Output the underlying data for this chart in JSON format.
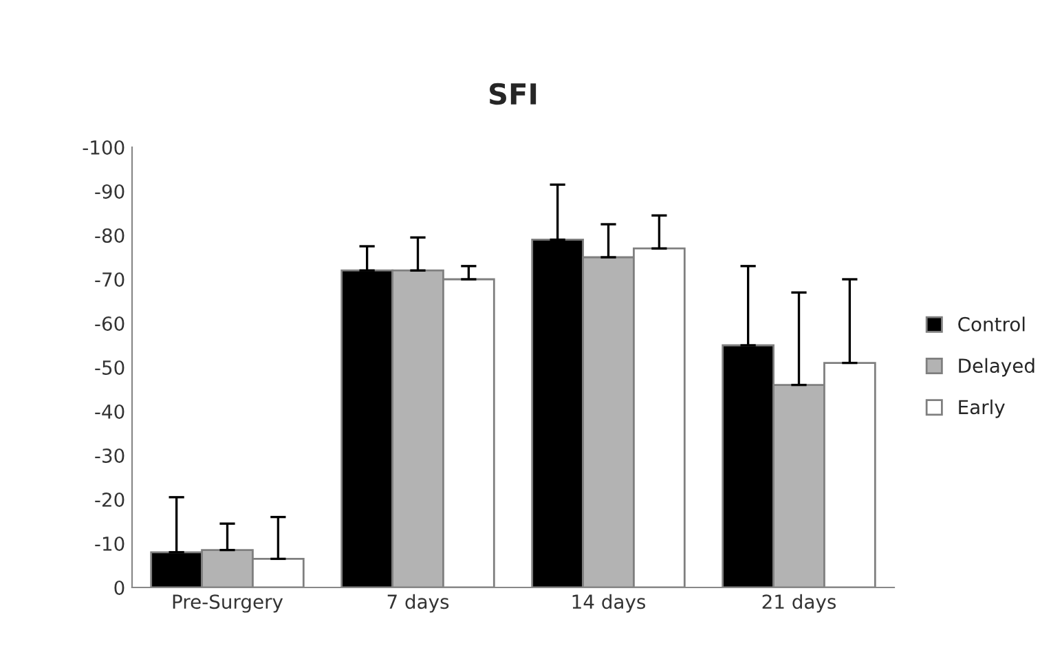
{
  "chart_data": {
    "type": "bar",
    "title": "SFI",
    "categories": [
      "Pre-Surgery",
      "7 days",
      "14 days",
      "21 days"
    ],
    "series": [
      {
        "name": "Control",
        "color": "#000000",
        "values": [
          -8,
          -72,
          -79,
          -55
        ],
        "errors": [
          [
            -20.5,
            -8
          ],
          [
            -77.5,
            -72
          ],
          [
            -91.5,
            -79
          ],
          [
            -73,
            -55
          ]
        ]
      },
      {
        "name": "Delayed",
        "color": "#b3b3b3",
        "values": [
          -8.5,
          -72,
          -75,
          -46
        ],
        "errors": [
          [
            -14.5,
            -8.5
          ],
          [
            -79.5,
            -72
          ],
          [
            -82.5,
            -75
          ],
          [
            -67,
            -46
          ]
        ]
      },
      {
        "name": "Early",
        "color": "#ffffff",
        "values": [
          -6.5,
          -70,
          -77,
          -51
        ],
        "errors": [
          [
            -16,
            -6.5
          ],
          [
            -73,
            -70
          ],
          [
            -84.5,
            -77
          ],
          [
            -70,
            -51
          ]
        ]
      }
    ],
    "ylim": [
      0,
      -100
    ],
    "yticks": [
      0,
      -10,
      -20,
      -30,
      -40,
      -50,
      -60,
      -70,
      -80,
      -90,
      -100
    ],
    "grid": false,
    "legend": "right"
  }
}
